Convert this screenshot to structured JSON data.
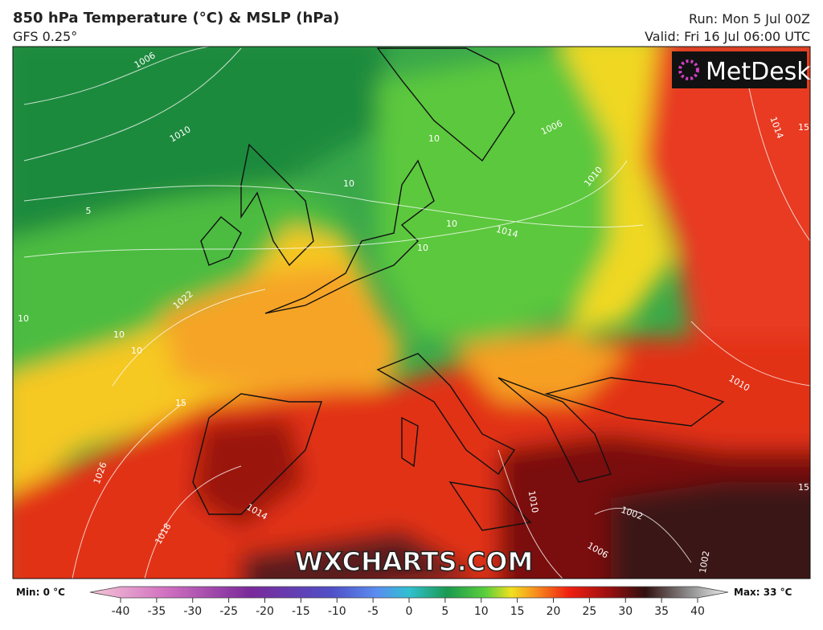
{
  "header": {
    "title": "850 hPa Temperature (°C) & MSLP (hPa)",
    "subtitle": "GFS 0.25°",
    "run": "Run: Mon 5 Jul 00Z",
    "valid": "Valid: Fri 16 Jul 06:00 UTC"
  },
  "logo": "MetDesk",
  "watermark": "WXCHARTS.COM",
  "contour_labels": [
    "1006",
    "1010",
    "5",
    "10",
    "10",
    "10",
    "10",
    "10",
    "10",
    "1006",
    "1010",
    "1014",
    "15",
    "1014",
    "1022",
    "15",
    "1026",
    "1014",
    "1018",
    "1010",
    "1010",
    "1002",
    "1006",
    "1002",
    "10",
    "15"
  ],
  "colorbar": {
    "min_label": "Min: 0 °C",
    "max_label": "Max: 33 °C",
    "ticks": [
      -40,
      -35,
      -30,
      -25,
      -20,
      -15,
      -10,
      -5,
      0,
      5,
      10,
      15,
      20,
      25,
      30,
      35,
      40
    ]
  }
}
